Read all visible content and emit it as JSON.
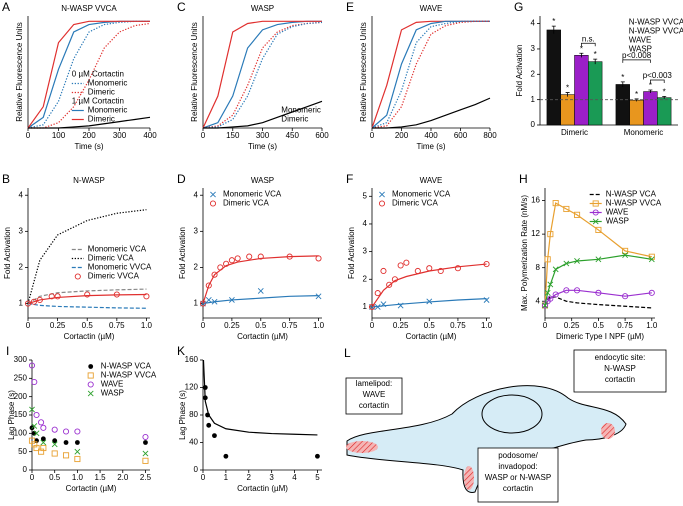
{
  "chart_data": [
    {
      "panel": "A",
      "type": "line",
      "title": "N-WASP VVCA",
      "xlabel": "Time (s)",
      "ylabel": "Relative Fluorescence Units",
      "xlim": [
        0,
        400
      ],
      "ylim": [
        0,
        1.05
      ],
      "xticks": [
        0,
        100,
        200,
        300,
        400
      ],
      "x": [
        0,
        50,
        100,
        150,
        200,
        250,
        300,
        350,
        400
      ],
      "legend": "lower right",
      "legend_titles": [
        "0 µM Cortactin",
        "1 µM Cortactin"
      ],
      "legend_text_colored": true,
      "legend_samples": true,
      "series": [
        {
          "name": "Monomeric",
          "color": "#2a7ab8",
          "style": "dotted",
          "values": [
            0,
            0.03,
            0.25,
            0.65,
            0.9,
            0.97,
            0.99,
            1,
            1
          ]
        },
        {
          "name": "Dimeric",
          "color": "#e0302f",
          "style": "dotted",
          "values": [
            0,
            0,
            0.05,
            0.2,
            0.45,
            0.75,
            0.9,
            0.96,
            0.98
          ]
        },
        {
          "name": "Monomeric",
          "color": "#2a7ab8",
          "style": "solid",
          "values": [
            0,
            0.1,
            0.55,
            0.9,
            0.97,
            0.99,
            1,
            1,
            1
          ]
        },
        {
          "name": "Dimeric",
          "color": "#e0302f",
          "style": "solid",
          "values": [
            0,
            0.2,
            0.8,
            0.97,
            1,
            1,
            1,
            1,
            1
          ]
        },
        {
          "color": "#000000",
          "style": "solid",
          "values": [
            0,
            0,
            0,
            0.01,
            0.02,
            0.04,
            0.06,
            0.08,
            0.1
          ]
        }
      ]
    },
    {
      "panel": "C",
      "type": "line",
      "title": "WASP",
      "xlabel": "Time (s)",
      "ylabel": "Relative Fluorescence Units",
      "xlim": [
        0,
        600
      ],
      "ylim": [
        0,
        1.05
      ],
      "xticks": [
        0,
        150,
        300,
        450,
        600
      ],
      "x": [
        0,
        75,
        150,
        225,
        300,
        375,
        450,
        525,
        600
      ],
      "legend": "lower right",
      "legend_text_colored": true,
      "legend_samples": false,
      "series": [
        {
          "name": "Monomeric",
          "color": "#2a7ab8",
          "style": "solid",
          "values": [
            0,
            0.05,
            0.3,
            0.75,
            0.92,
            0.97,
            0.99,
            1,
            1
          ]
        },
        {
          "name": "Dimeric",
          "color": "#e0302f",
          "style": "solid",
          "values": [
            0,
            0.3,
            0.9,
            0.98,
            1,
            1,
            1,
            1,
            1
          ]
        },
        {
          "color": "#e0302f",
          "style": "dotted",
          "values": [
            0,
            0.02,
            0.12,
            0.4,
            0.75,
            0.9,
            0.96,
            0.98,
            0.99
          ]
        },
        {
          "color": "#2a7ab8",
          "style": "dotted",
          "values": [
            0,
            0.01,
            0.08,
            0.3,
            0.65,
            0.88,
            0.95,
            0.98,
            0.99
          ]
        },
        {
          "color": "#000000",
          "style": "solid",
          "values": [
            0,
            0,
            0.01,
            0.02,
            0.05,
            0.1,
            0.15,
            0.2,
            0.25
          ]
        }
      ]
    },
    {
      "panel": "E",
      "type": "line",
      "title": "WAVE",
      "xlabel": "Time (s)",
      "ylabel": "Relative Fluorescence Units",
      "xlim": [
        0,
        800
      ],
      "ylim": [
        0,
        1.05
      ],
      "xticks": [
        0,
        200,
        400,
        600,
        800
      ],
      "x": [
        0,
        100,
        200,
        300,
        400,
        500,
        600,
        700,
        800
      ],
      "series": [
        {
          "color": "#e0302f",
          "style": "solid",
          "values": [
            0,
            0.4,
            0.92,
            0.99,
            1,
            1,
            1,
            1,
            1
          ]
        },
        {
          "color": "#2a7ab8",
          "style": "solid",
          "values": [
            0,
            0.12,
            0.6,
            0.92,
            0.98,
            1,
            1,
            1,
            1
          ]
        },
        {
          "color": "#2a7ab8",
          "style": "dotted",
          "values": [
            0,
            0.05,
            0.35,
            0.8,
            0.95,
            0.98,
            1,
            1,
            1
          ]
        },
        {
          "color": "#e0302f",
          "style": "dotted",
          "values": [
            0,
            0.02,
            0.2,
            0.6,
            0.88,
            0.96,
            0.99,
            1,
            1
          ]
        },
        {
          "color": "#000000",
          "style": "solid",
          "values": [
            0,
            0,
            0.01,
            0.03,
            0.07,
            0.12,
            0.17,
            0.22,
            0.28
          ]
        }
      ]
    },
    {
      "panel": "G",
      "type": "bar",
      "ylabel": "Fold Activation",
      "ylim": [
        0,
        4.3
      ],
      "yticks": [
        0,
        1,
        2,
        3,
        4
      ],
      "categories": [
        "Dimeric",
        "Monomeric"
      ],
      "ref_line": 1,
      "bar_label": "*",
      "annotations": [
        "n.s.",
        "p<0.008",
        "p<0.003"
      ],
      "legend": "upper right",
      "legend_text_colored": true,
      "legend_samples": false,
      "series": [
        {
          "name": "N-WASP VVCA",
          "color": "#111111",
          "values": [
            3.75,
            1.6
          ],
          "errors": [
            0.15,
            0.1
          ]
        },
        {
          "name": "N-WASP VVCA",
          "color": "#e8961e",
          "values": [
            1.2,
            0.98
          ],
          "errors": [
            0.08,
            0.05
          ]
        },
        {
          "name": "WAVE",
          "color": "#9b1fc8",
          "values": [
            2.75,
            1.32
          ],
          "errors": [
            0.08,
            0.06
          ]
        },
        {
          "name": "WASP",
          "color": "#1a9a55",
          "values": [
            2.5,
            1.08
          ],
          "errors": [
            0.1,
            0.05
          ]
        }
      ]
    },
    {
      "panel": "B",
      "type": "line",
      "title": "N-WASP",
      "xlabel": "Cortactin (µM)",
      "ylabel": "Fold Activation",
      "xlim": [
        0,
        1.03
      ],
      "ylim": [
        0.6,
        4.2
      ],
      "yticks": [
        1,
        2,
        3,
        4
      ],
      "xticks": [
        0,
        0.25,
        0.5,
        0.75,
        {
          "value": 1,
          "label": "1.0"
        }
      ],
      "x": [
        0,
        0.1,
        0.25,
        0.5,
        0.75,
        1
      ],
      "legend": "center right",
      "legend_samples": true,
      "series": [
        {
          "name": "Monomeric VCA",
          "color": "#888888",
          "style": "dashed",
          "values": [
            1,
            1.2,
            1.3,
            1.35,
            1.38,
            1.4
          ]
        },
        {
          "name": "Dimeric VCA",
          "color": "#000000",
          "style": "dotted",
          "values": [
            1,
            2.2,
            2.9,
            3.3,
            3.5,
            3.6
          ]
        },
        {
          "name": "Monomeric VVCA",
          "color": "#2a7ab8",
          "style": "dashed",
          "values": [
            1,
            0.95,
            0.92,
            0.9,
            0.88,
            0.87
          ]
        },
        {
          "name": "Dimeric VVCA",
          "color": "#e0302f",
          "style": "none",
          "marker": "o",
          "x": [
            0,
            0.05,
            0.1,
            0.2,
            0.25,
            0.5,
            0.75,
            1
          ],
          "values": [
            1,
            1.05,
            1.1,
            1.2,
            1.2,
            1.25,
            1.25,
            1.2
          ]
        },
        {
          "color": "#e0302f",
          "style": "solid",
          "values": [
            1,
            1.1,
            1.17,
            1.22,
            1.24,
            1.25
          ]
        }
      ]
    },
    {
      "panel": "D",
      "type": "line",
      "title": "WASP",
      "xlabel": "Cortactin (µM)",
      "ylabel": "Fold Activation",
      "xlim": [
        0,
        1.03
      ],
      "ylim": [
        0.6,
        4.2
      ],
      "yticks": [
        1,
        2,
        3,
        4
      ],
      "xticks": [
        0,
        0.25,
        0.5,
        0.75,
        {
          "value": 1,
          "label": "1.0"
        }
      ],
      "legend": "upper left",
      "legend_samples": true,
      "series": [
        {
          "name": "Monomeric VCA",
          "color": "#2a7ab8",
          "style": "none",
          "marker": "x",
          "x": [
            0,
            0.05,
            0.1,
            0.25,
            0.5,
            1
          ],
          "values": [
            1,
            1.1,
            1.05,
            1.1,
            1.35,
            1.2
          ]
        },
        {
          "name": "Dimeric VCA",
          "color": "#e0302f",
          "style": "none",
          "marker": "o",
          "x": [
            0,
            0.05,
            0.1,
            0.15,
            0.2,
            0.25,
            0.3,
            0.4,
            0.5,
            0.75,
            1
          ],
          "values": [
            1,
            1.5,
            1.8,
            2,
            2.1,
            2.2,
            2.25,
            2.3,
            2.3,
            2.3,
            2.25
          ]
        },
        {
          "color": "#2a7ab8",
          "style": "solid",
          "x": [
            0,
            0.1,
            0.25,
            0.5,
            0.75,
            1
          ],
          "values": [
            1,
            1.05,
            1.1,
            1.15,
            1.2,
            1.22
          ]
        },
        {
          "color": "#e0302f",
          "style": "solid",
          "x": [
            0,
            0.05,
            0.1,
            0.2,
            0.3,
            0.5,
            0.75,
            1
          ],
          "values": [
            1,
            1.5,
            1.8,
            2.05,
            2.15,
            2.25,
            2.3,
            2.32
          ]
        }
      ]
    },
    {
      "panel": "F",
      "type": "line",
      "title": "WAVE",
      "xlabel": "Cortactin (µM)",
      "ylabel": "Fold Activation",
      "xlim": [
        0,
        1.03
      ],
      "ylim": [
        0.6,
        5.3
      ],
      "yticks": [
        1,
        2,
        3,
        4,
        5
      ],
      "xticks": [
        0,
        0.25,
        0.5,
        0.75,
        {
          "value": 1,
          "label": "1.0"
        }
      ],
      "legend": "upper left",
      "legend_samples": true,
      "series": [
        {
          "name": "Monomeric VCA",
          "color": "#2a7ab8",
          "style": "none",
          "marker": "x",
          "x": [
            0,
            0.05,
            0.1,
            0.25,
            0.5,
            1
          ],
          "values": [
            1,
            1,
            1.1,
            1.05,
            1.2,
            1.25
          ]
        },
        {
          "name": "Dimeric VCA",
          "color": "#e0302f",
          "style": "none",
          "marker": "o",
          "x": [
            0,
            0.05,
            0.1,
            0.15,
            0.2,
            0.25,
            0.3,
            0.4,
            0.5,
            0.6,
            0.75,
            1
          ],
          "values": [
            1,
            1.5,
            2.3,
            1.8,
            2,
            2.5,
            2.6,
            2.3,
            2.4,
            2.3,
            2.4,
            2.55
          ]
        },
        {
          "color": "#2a7ab8",
          "style": "solid",
          "x": [
            0,
            0.25,
            0.5,
            0.75,
            1
          ],
          "values": [
            1,
            1.1,
            1.18,
            1.25,
            1.3
          ]
        },
        {
          "color": "#e0302f",
          "style": "solid",
          "x": [
            0,
            0.1,
            0.2,
            0.3,
            0.5,
            0.75,
            1
          ],
          "values": [
            1,
            1.6,
            1.95,
            2.1,
            2.3,
            2.45,
            2.55
          ]
        }
      ]
    },
    {
      "panel": "H",
      "type": "line",
      "xlabel": "Dimeric Type I NPF (µM)",
      "ylabel": "Max. Polymerization Rate (nM/s)",
      "xlim": [
        0,
        1.03
      ],
      "ylim": [
        2,
        17.5
      ],
      "yticks": [
        4,
        8,
        12,
        16
      ],
      "xticks": [
        0,
        0.25,
        0.5,
        0.75,
        {
          "value": 1,
          "label": "1.0"
        }
      ],
      "x": [
        0,
        0.025,
        0.05,
        0.1,
        0.2,
        0.3,
        0.5,
        0.75,
        1
      ],
      "legend": "upper right",
      "legend_samples": true,
      "series": [
        {
          "name": "N-WASP VCA",
          "color": "#000000",
          "style": "dashed",
          "values": [
            3.5,
            4.2,
            4.5,
            4.5,
            4,
            3.8,
            3.6,
            3.4,
            3.2
          ]
        },
        {
          "name": "N-WASP VVCA",
          "color": "#e8a030",
          "style": "solid",
          "marker": "s",
          "values": [
            3.5,
            9,
            12,
            15.7,
            15,
            14.3,
            12.5,
            10,
            9.3
          ]
        },
        {
          "name": "WAVE",
          "color": "#9b30d0",
          "style": "solid",
          "marker": "o",
          "values": [
            3.5,
            4,
            4.3,
            4.8,
            5.3,
            5.3,
            5,
            4.6,
            5
          ]
        },
        {
          "name": "WASP",
          "color": "#2ca02c",
          "style": "solid",
          "marker": "x",
          "values": [
            3.5,
            5,
            6,
            7.8,
            8.5,
            8.8,
            9,
            9.5,
            9
          ]
        }
      ]
    },
    {
      "panel": "I",
      "type": "scatter",
      "xlabel": "Cortactin (µM)",
      "ylabel": "Lag Phase (s)",
      "xlim": [
        0,
        2.6
      ],
      "ylim": [
        0,
        300
      ],
      "yticks": [
        0,
        50,
        100,
        150,
        200,
        250,
        300
      ],
      "xticks": [
        0,
        0.5,
        {
          "value": 1,
          "label": "1.0"
        },
        1.5,
        {
          "value": 2,
          "label": "2.0"
        },
        2.5
      ],
      "legend": "upper right",
      "legend_samples": true,
      "series": [
        {
          "name": "N-WASP VCA",
          "color": "#000000",
          "style": "none",
          "marker": "dot",
          "x": [
            0,
            0.05,
            0.1,
            0.25,
            0.5,
            0.75,
            1,
            2.5
          ],
          "values": [
            115,
            100,
            80,
            85,
            80,
            75,
            75,
            75
          ]
        },
        {
          "name": "N-WASP VVCA",
          "color": "#e8a030",
          "style": "none",
          "marker": "s",
          "x": [
            0,
            0.05,
            0.1,
            0.2,
            0.25,
            0.5,
            0.75,
            1,
            2.5
          ],
          "values": [
            80,
            70,
            60,
            50,
            60,
            45,
            40,
            30,
            25
          ]
        },
        {
          "name": "WAVE",
          "color": "#9b30d0",
          "style": "none",
          "marker": "o",
          "x": [
            0,
            0.05,
            0.1,
            0.2,
            0.25,
            0.5,
            0.75,
            1,
            2.5
          ],
          "values": [
            285,
            240,
            150,
            130,
            115,
            110,
            105,
            105,
            90
          ]
        },
        {
          "name": "WASP",
          "color": "#2ca02c",
          "style": "none",
          "marker": "x",
          "x": [
            0,
            0.05,
            0.1,
            0.25,
            0.5,
            1,
            2.5
          ],
          "values": [
            165,
            120,
            100,
            75,
            70,
            50,
            45
          ]
        }
      ]
    },
    {
      "panel": "K",
      "type": "scatter",
      "xlabel": "Cortactin (µM)",
      "ylabel": "Lag Phase (s)",
      "xlim": [
        0,
        5.2
      ],
      "ylim": [
        0,
        160
      ],
      "yticks": [
        0,
        40,
        80,
        120,
        160
      ],
      "xticks": [
        0,
        1,
        2,
        3,
        4,
        5
      ],
      "series": [
        {
          "color": "#000000",
          "style": "none",
          "marker": "dot",
          "x": [
            0.1,
            0.1,
            0.2,
            0.25,
            0.5,
            1,
            5
          ],
          "values": [
            120,
            105,
            80,
            65,
            50,
            20,
            20
          ]
        },
        {
          "color": "#000000",
          "style": "solid",
          "x": [
            0.02,
            0.1,
            0.25,
            0.5,
            1,
            2,
            3,
            4,
            5
          ],
          "values": [
            160,
            100,
            80,
            68,
            60,
            55,
            53,
            52,
            51
          ]
        }
      ]
    }
  ],
  "diagram": {
    "panel": "L",
    "labels": [
      [
        "lamelipod:",
        "WAVE",
        "cortactin"
      ],
      [
        "endocytic site:",
        "N-WASP",
        "cortactin"
      ],
      [
        "podosome/",
        "invadopod:",
        "WASP or N-WASP",
        "cortactin"
      ]
    ]
  }
}
